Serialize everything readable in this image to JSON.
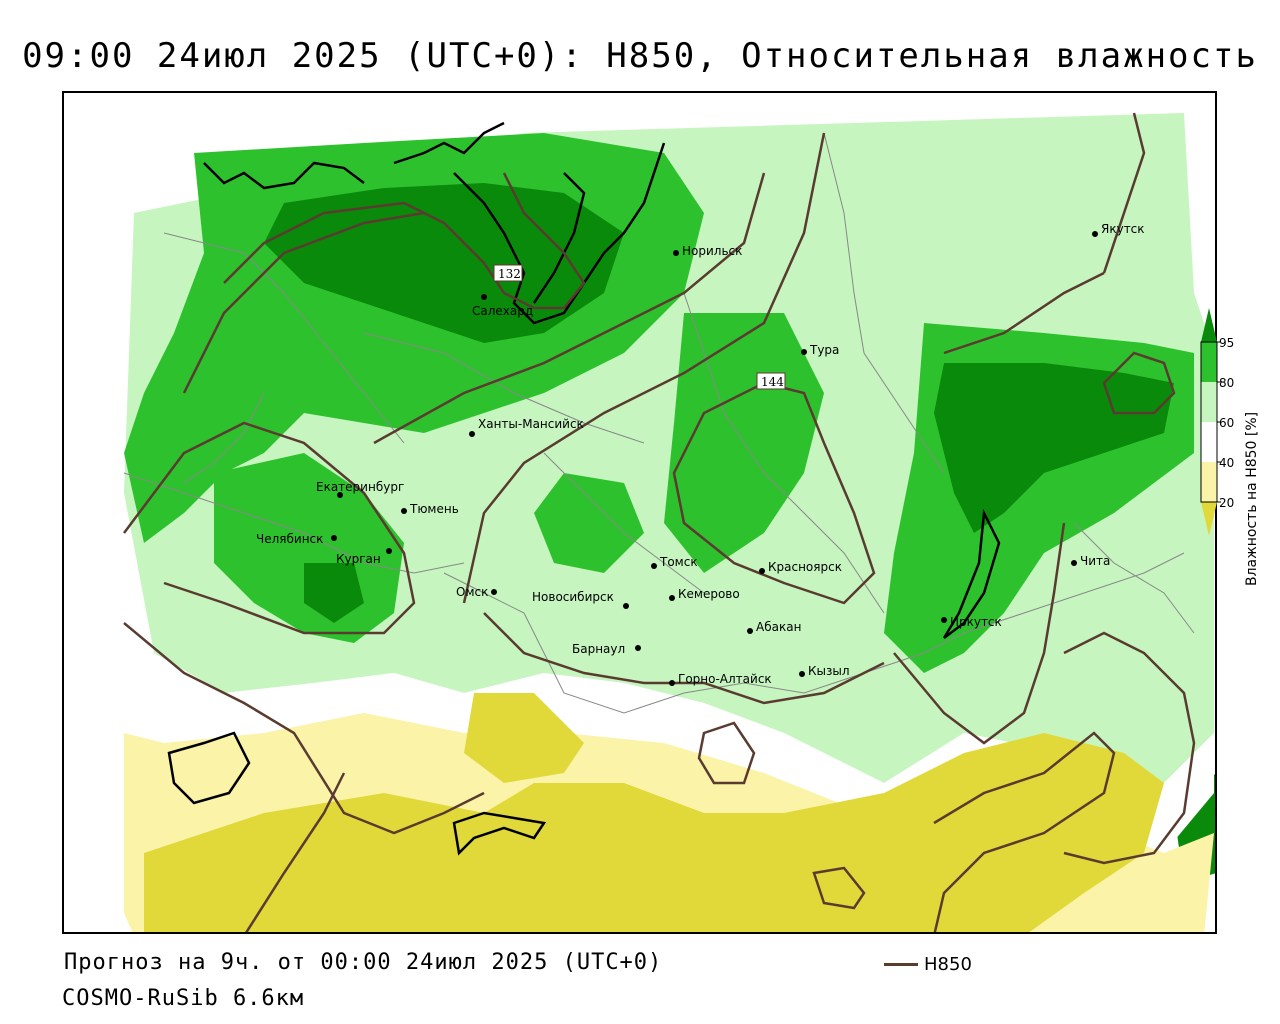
{
  "title": "09:00 24июл 2025 (UTC+0): H850, Относительная влажность",
  "footer": {
    "forecast": "Прогноз на 9ч. от 00:00 24июл 2025 (UTC+0)",
    "model": "COSMO-RuSib 6.6км"
  },
  "legend": {
    "line_label": "H850",
    "line_color": "#5a3b30"
  },
  "colorbar": {
    "title": "Влажность на H850 [%]",
    "ticks": [
      "95",
      "80",
      "60",
      "40",
      "20"
    ],
    "colors": {
      "very_high": "#0a8a0a",
      "high": "#2ec12e",
      "mid": "#c6f5c0",
      "neutral": "#ffffff",
      "low": "#fbf3a8",
      "very_low": "#e1d93a"
    }
  },
  "contour_labels": [
    "132",
    "144"
  ],
  "cities": [
    {
      "name": "Салехард"
    },
    {
      "name": "Норильск"
    },
    {
      "name": "Тура"
    },
    {
      "name": "Якутск"
    },
    {
      "name": "Ханты-Мансийск"
    },
    {
      "name": "Екатеринбург"
    },
    {
      "name": "Тюмень"
    },
    {
      "name": "Челябинск"
    },
    {
      "name": "Курган"
    },
    {
      "name": "Омск"
    },
    {
      "name": "Томск"
    },
    {
      "name": "Новосибирск"
    },
    {
      "name": "Кемерово"
    },
    {
      "name": "Красноярск"
    },
    {
      "name": "Абакан"
    },
    {
      "name": "Барнаул"
    },
    {
      "name": "Горно-Алтайск"
    },
    {
      "name": "Кызыл"
    },
    {
      "name": "Иркутск"
    },
    {
      "name": "Чита"
    }
  ]
}
